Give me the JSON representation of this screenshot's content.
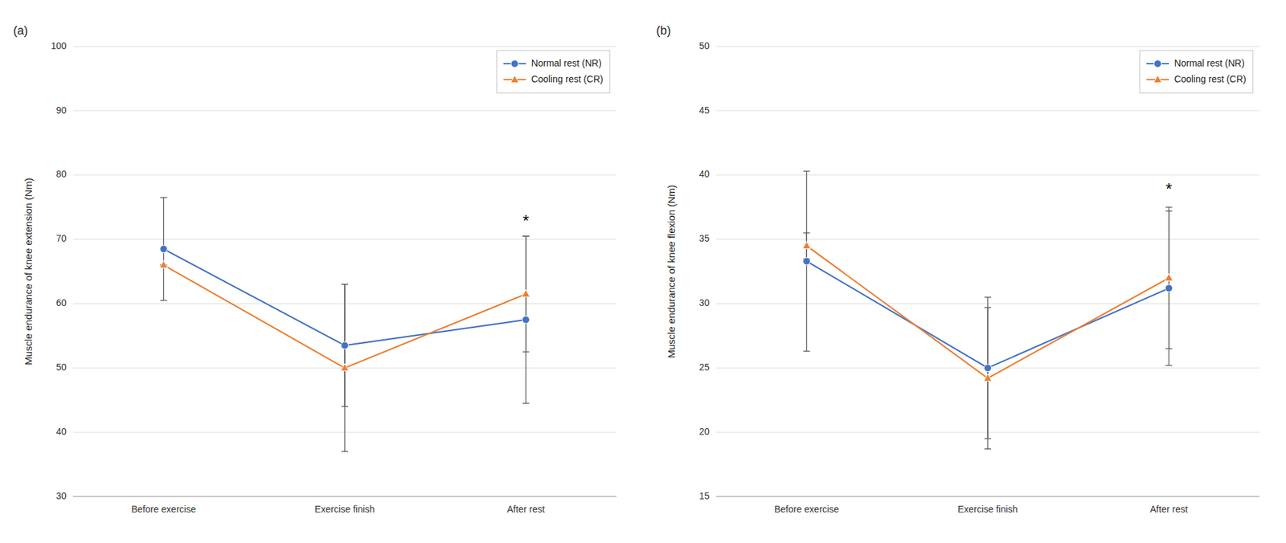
{
  "chart_data": [
    {
      "type": "line",
      "title": "(a)",
      "y_label": "Muscle endurance of knee extension (Nm)",
      "categories": [
        "Before exercise",
        "Exercise finish",
        "After rest"
      ],
      "series": [
        {
          "name": "Normal rest (NR)",
          "color": "#4472C4",
          "marker": "circle",
          "values": [
            68.5,
            53.5,
            57.5
          ],
          "error_upper": [
            8.0,
            9.5,
            13.0
          ],
          "error_lower": [
            8.0,
            9.5,
            13.0
          ]
        },
        {
          "name": "Cooling rest (CR)",
          "color": "#ED7D31",
          "marker": "triangle",
          "values": [
            66.0,
            50.0,
            61.5
          ],
          "error_upper": [
            0.0,
            13.0,
            9.0
          ],
          "error_lower": [
            0.0,
            13.0,
            9.0
          ]
        }
      ],
      "ylim": [
        30,
        100
      ],
      "yticks": [
        30,
        40,
        50,
        60,
        70,
        80,
        90,
        100
      ],
      "annotations": [
        {
          "text": "*",
          "x": "After rest",
          "y": 72.0
        }
      ],
      "grid": true,
      "legend": "upper right"
    },
    {
      "type": "line",
      "title": "(b)",
      "y_label": "Muscle endurance of knee flexion (Nm)",
      "categories": [
        "Before exercise",
        "Exercise finish",
        "After rest"
      ],
      "series": [
        {
          "name": "Normal rest (NR)",
          "color": "#4472C4",
          "marker": "circle",
          "values": [
            33.3,
            25.0,
            31.2
          ],
          "error_upper": [
            7.0,
            5.5,
            6.0
          ],
          "error_lower": [
            7.0,
            5.5,
            6.0
          ]
        },
        {
          "name": "Cooling rest (CR)",
          "color": "#ED7D31",
          "marker": "triangle",
          "values": [
            34.5,
            24.2,
            32.0
          ],
          "error_upper": [
            1.0,
            5.5,
            5.5
          ],
          "error_lower": [
            1.0,
            5.5,
            5.5
          ]
        }
      ],
      "ylim": [
        15,
        50
      ],
      "yticks": [
        15,
        20,
        25,
        30,
        35,
        40,
        45,
        50
      ],
      "annotations": [
        {
          "text": "*",
          "x": "After rest",
          "y": 38.5
        }
      ],
      "grid": true,
      "legend": "upper right"
    }
  ]
}
